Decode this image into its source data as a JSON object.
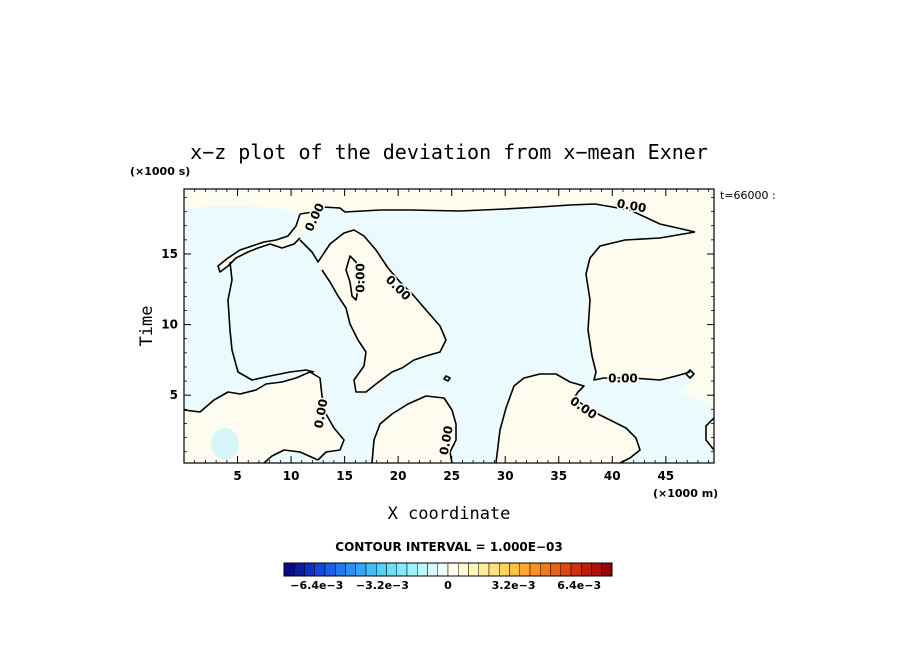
{
  "chart_data": {
    "type": "heatmap",
    "title": "x−z plot of the deviation from x−mean Exner",
    "xlabel": "X coordinate",
    "ylabel": "Time",
    "x_unit": "(×1000 m)",
    "y_unit": "(×1000 s)",
    "time_stamp": "t=66000 :",
    "xlim": [
      0,
      49.5
    ],
    "ylim": [
      0.2,
      19.6
    ],
    "x_ticks": [
      5,
      10,
      15,
      20,
      25,
      30,
      35,
      40,
      45
    ],
    "y_ticks": [
      5,
      10,
      15
    ],
    "x_tick_labels": [
      "5",
      "10",
      "15",
      "20",
      "25",
      "30",
      "35",
      "40",
      "45"
    ],
    "y_tick_labels": [
      "5",
      "10",
      "15"
    ],
    "contour_interval_text": "CONTOUR INTERVAL = 1.000E−03",
    "contour_labels": [
      {
        "text": "0.00",
        "x": 12.2,
        "y": 17.6,
        "angle": -65
      },
      {
        "text": "0.00",
        "x": 41.8,
        "y": 18.4,
        "angle": 10
      },
      {
        "text": "0.00",
        "x": 16.5,
        "y": 13.3,
        "angle": -90
      },
      {
        "text": "0.00",
        "x": 20.0,
        "y": 12.6,
        "angle": 45
      },
      {
        "text": "0.00",
        "x": 41.0,
        "y": 6.2,
        "angle": 0
      },
      {
        "text": "0.00",
        "x": 37.3,
        "y": 4.1,
        "angle": 35
      },
      {
        "text": "0.00",
        "x": 12.8,
        "y": 3.7,
        "angle": -80
      },
      {
        "text": "0.00",
        "x": 24.5,
        "y": 1.8,
        "angle": -80
      }
    ],
    "regions": [
      {
        "name": "negative",
        "color": "#ebfbfd"
      },
      {
        "name": "positive",
        "color": "#fdfcef"
      }
    ],
    "colorbar": {
      "min": -0.008,
      "max": 0.008,
      "levels": 32,
      "tick_labels": [
        "−6.4e−3",
        "−3.2e−3",
        "0",
        "3.2e−3",
        "6.4e−3"
      ],
      "tick_values": [
        -0.0064,
        -0.0032,
        0,
        0.0032,
        0.0064
      ],
      "colors": [
        "#0a0a8c",
        "#0d1aa6",
        "#1030c0",
        "#1448d6",
        "#1a60e8",
        "#2078f2",
        "#2a90f6",
        "#36a6f8",
        "#44bcfa",
        "#56d0fb",
        "#6cdffc",
        "#86eafd",
        "#a0f1fd",
        "#bcf6fe",
        "#d6fafe",
        "#eefdfe",
        "#fffff0",
        "#fffcd8",
        "#fff6bc",
        "#ffee9c",
        "#ffe27c",
        "#ffd25e",
        "#ffbe44",
        "#ffa830",
        "#fc9022",
        "#f47818",
        "#ea6012",
        "#de480e",
        "#d0320c",
        "#c01e0a",
        "#ac1008",
        "#960606"
      ]
    }
  }
}
